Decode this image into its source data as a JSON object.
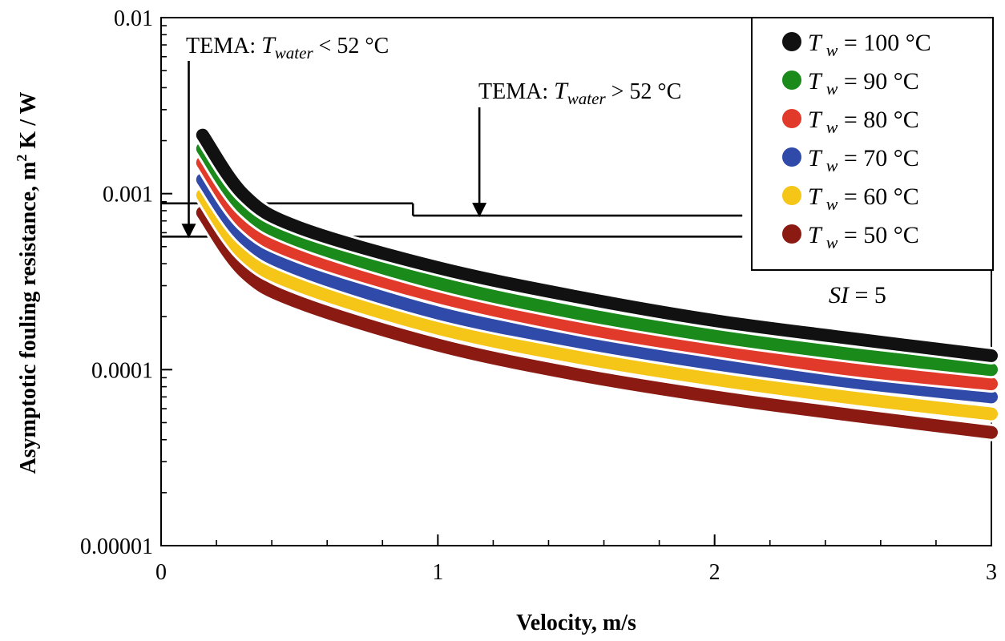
{
  "chart_data": {
    "type": "line",
    "title": "",
    "xlabel": "Velocity, m/s",
    "ylabel_main": "Asymptotic fouling resistance, m",
    "ylabel_sup": "2",
    "ylabel_tail": " K / W",
    "xlim": [
      0,
      3
    ],
    "ylim": [
      1e-05,
      0.01
    ],
    "yscale": "log",
    "x_ticks": [
      "0",
      "1",
      "2",
      "3"
    ],
    "y_ticks": [
      "0.01",
      "0.001",
      "0.0001",
      "0.00001"
    ],
    "legend": {
      "placement": "top-right",
      "prefix": "T",
      "subscript": "w"
    },
    "series": [
      {
        "name": "100 °C",
        "label": " = 100 °C",
        "color": "#111111",
        "x": [
          0.15,
          0.3,
          0.5,
          1.0,
          1.5,
          2.0,
          2.5,
          3.0
        ],
        "values": [
          0.00215,
          0.00098,
          0.00064,
          0.00038,
          0.00026,
          0.00019,
          0.00015,
          0.00012
        ]
      },
      {
        "name": "90 °C",
        "label": " = 90 °C",
        "color": "#1a8a1a",
        "x": [
          0.15,
          0.3,
          0.5,
          1.0,
          1.5,
          2.0,
          2.5,
          3.0
        ],
        "values": [
          0.0018,
          0.00082,
          0.00054,
          0.00031,
          0.00021,
          0.000155,
          0.000122,
          0.0001
        ]
      },
      {
        "name": "80 °C",
        "label": " = 80 °C",
        "color": "#e23a2a",
        "x": [
          0.15,
          0.3,
          0.5,
          1.0,
          1.5,
          2.0,
          2.5,
          3.0
        ],
        "values": [
          0.0015,
          0.00068,
          0.00045,
          0.00026,
          0.000175,
          0.00013,
          0.0001,
          8.3e-05
        ]
      },
      {
        "name": "70 °C",
        "label": " = 70 °C",
        "color": "#2f4aa8",
        "x": [
          0.15,
          0.3,
          0.5,
          1.0,
          1.5,
          2.0,
          2.5,
          3.0
        ],
        "values": [
          0.0012,
          0.00056,
          0.00037,
          0.00021,
          0.000145,
          0.000108,
          8.5e-05,
          7e-05
        ]
      },
      {
        "name": "60 °C",
        "label": " = 60 °C",
        "color": "#f5c518",
        "x": [
          0.15,
          0.3,
          0.5,
          1.0,
          1.5,
          2.0,
          2.5,
          3.0
        ],
        "values": [
          0.00098,
          0.00045,
          0.0003,
          0.000172,
          0.000118,
          8.8e-05,
          6.9e-05,
          5.6e-05
        ]
      },
      {
        "name": "50 °C",
        "label": " = 50 °C",
        "color": "#8b1a12",
        "x": [
          0.15,
          0.3,
          0.5,
          1.0,
          1.5,
          2.0,
          2.5,
          3.0
        ],
        "values": [
          0.00078,
          0.00036,
          0.00024,
          0.000138,
          9.4e-05,
          7e-05,
          5.5e-05,
          4.4e-05
        ]
      }
    ],
    "reference_lines": [
      {
        "name": "tema-below-52",
        "segments": [
          {
            "x": [
              0,
              2.1
            ],
            "y": 0.00057
          }
        ]
      },
      {
        "name": "tema-above-52",
        "segments": [
          {
            "x": [
              0,
              0.91
            ],
            "y": 0.00088
          },
          {
            "x": [
              0.91,
              2.1
            ],
            "y": 0.00075
          }
        ]
      }
    ],
    "annotations": [
      {
        "id": "tema_low",
        "prefix": "TEMA:  ",
        "var": "T",
        "sub": "water",
        "rel": "  < 52 °C",
        "arrow_x": 0.1,
        "arrow_to": 0.00057
      },
      {
        "id": "tema_high",
        "prefix": "TEMA:  ",
        "var": "T",
        "sub": "water",
        "rel": "  > 52 °C",
        "arrow_x": 1.15,
        "arrow_to": 0.00075
      },
      {
        "id": "si",
        "var": "SI",
        "rel": "  = 5"
      }
    ]
  }
}
